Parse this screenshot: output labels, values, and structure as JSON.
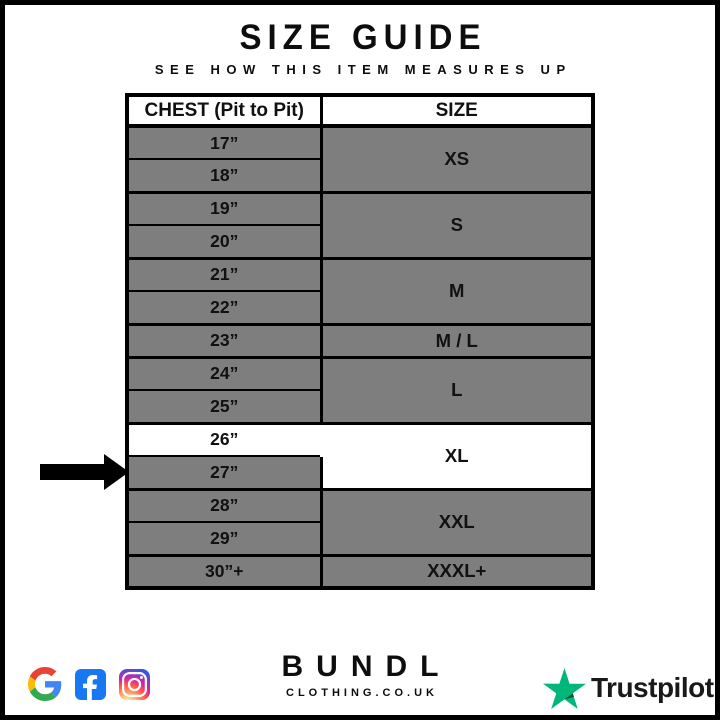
{
  "header": {
    "title": "SIZE GUIDE",
    "subtitle": "SEE HOW THIS ITEM MEASURES UP"
  },
  "chart_data": {
    "type": "table",
    "title": "SIZE GUIDE",
    "subtitle": "SEE HOW THIS ITEM MEASURES UP",
    "columns": [
      "CHEST (Pit to Pit)",
      "SIZE"
    ],
    "rows": [
      [
        "17”",
        "XS"
      ],
      [
        "18”",
        "XS"
      ],
      [
        "19”",
        "S"
      ],
      [
        "20”",
        "S"
      ],
      [
        "21”",
        "M"
      ],
      [
        "22”",
        "M"
      ],
      [
        "23”",
        "M / L"
      ],
      [
        "24”",
        "L"
      ],
      [
        "25”",
        "L"
      ],
      [
        "26”",
        "XL"
      ],
      [
        "27”",
        "XL"
      ],
      [
        "28”",
        "XXL"
      ],
      [
        "29”",
        "XXL"
      ],
      [
        "30”+",
        "XXXL+"
      ]
    ],
    "highlighted_row": "26”",
    "annotation": "black arrow points at the 26” / XL row"
  },
  "table": {
    "columns": [
      "CHEST (Pit to Pit)",
      "SIZE"
    ],
    "groups": [
      {
        "size": "XS",
        "rows": [
          {
            "chest": "17”"
          },
          {
            "chest": "18”"
          }
        ]
      },
      {
        "size": "S",
        "rows": [
          {
            "chest": "19”"
          },
          {
            "chest": "20”"
          }
        ]
      },
      {
        "size": "M",
        "rows": [
          {
            "chest": "21”"
          },
          {
            "chest": "22”"
          }
        ]
      },
      {
        "size": "M / L",
        "rows": [
          {
            "chest": "23”"
          }
        ]
      },
      {
        "size": "L",
        "rows": [
          {
            "chest": "24”"
          },
          {
            "chest": "25”"
          }
        ]
      },
      {
        "size": "XL",
        "highlighted": true,
        "rows": [
          {
            "chest": "26”",
            "highlighted": true
          },
          {
            "chest": "27”"
          }
        ]
      },
      {
        "size": "XXL",
        "rows": [
          {
            "chest": "28”"
          },
          {
            "chest": "29”"
          }
        ]
      },
      {
        "size": "XXXL+",
        "rows": [
          {
            "chest": "30”+"
          }
        ]
      }
    ]
  },
  "colors": {
    "row_gray": "#7e7e7e",
    "highlight": "#ffffff",
    "line": "#000000",
    "facebook_blue": "#1877F2",
    "trustpilot_green": "#00b67a",
    "trustpilot_dark": "#005128",
    "google_blue": "#4285F4",
    "google_red": "#EA4335",
    "google_yellow": "#FBBC05",
    "google_green": "#34A853"
  },
  "footer": {
    "brand": {
      "name": "BUNDL",
      "domain": "CLOTHING.CO.UK"
    },
    "trustpilot_label": "Trustpilot",
    "social_icons": [
      "google",
      "facebook",
      "instagram"
    ]
  }
}
